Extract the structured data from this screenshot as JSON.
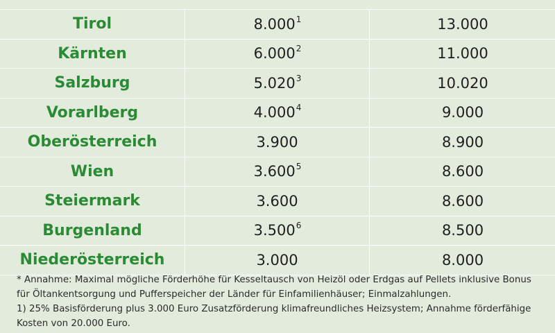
{
  "rows": [
    {
      "name": "Tirol",
      "value": "8.000",
      "note": "1",
      "total": "13.000"
    },
    {
      "name": "Kärnten",
      "value": "6.000",
      "note": "2",
      "total": "11.000"
    },
    {
      "name": "Salzburg",
      "value": "5.020",
      "note": "3",
      "total": "10.020"
    },
    {
      "name": "Vorarlberg",
      "value": "4.000",
      "note": "4",
      "total": "9.000"
    },
    {
      "name": "Oberösterreich",
      "value": "3.900",
      "note": "",
      "total": "8.900"
    },
    {
      "name": "Wien",
      "value": "3.600",
      "note": "5",
      "total": "8.600"
    },
    {
      "name": "Steiermark",
      "value": "3.600",
      "note": "",
      "total": "8.600"
    },
    {
      "name": "Burgenland",
      "value": "3.500",
      "note": "6",
      "total": "8.500"
    },
    {
      "name": "Niederösterreich",
      "value": "3.000",
      "note": "",
      "total": "8.000"
    }
  ],
  "footnotes": {
    "assumption": "* Annahme: Maximal mögliche Förderhöhe für Kesseltausch von Heizöl oder Erdgas auf Pellets inklusive Bonus für Öltankentsorgung und Pufferspeicher der Länder für Einfamilienhäuser; Einmalzahlungen.",
    "note1": "1) 25% Basisförderung plus 3.000 Euro Zusatzförderung klimafreundliches Heizsystem; Annahme förderfähige Kosten von 20.000 Euro."
  },
  "colors": {
    "background": "#e3ecdc",
    "state_name": "#2b8a34",
    "value_text": "#1e1e1e",
    "divider": "#ffffff"
  }
}
